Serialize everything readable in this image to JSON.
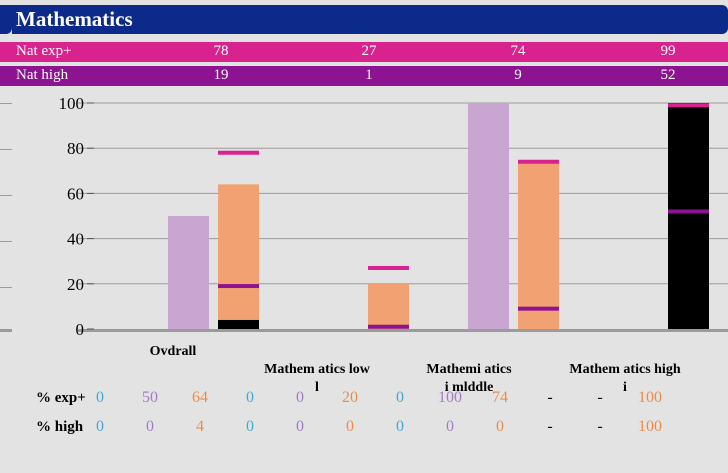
{
  "title": "Mathematics",
  "nat_rows": [
    {
      "label": "Nat exp+",
      "values": [
        "78",
        "27",
        "74",
        "99"
      ]
    },
    {
      "label": "Nat high",
      "values": [
        "19",
        "1",
        "9",
        "52"
      ]
    }
  ],
  "colors": {
    "header": "#0b2a8a",
    "nat_exp": "#d8238f",
    "nat_high": "#8d1490",
    "lilac": "#c9a6d2",
    "orange": "#f2a272",
    "black": "#000000",
    "blue_text": "#46a7d6",
    "purple_text": "#a27cc4",
    "orange_text": "#eb8c4a",
    "background": "#e3e3e3"
  },
  "chart_data": {
    "type": "bar",
    "ylim": [
      0,
      100
    ],
    "yticks": [
      "0",
      "20",
      "40",
      "60",
      "80",
      "100"
    ],
    "categories": [
      "Overall",
      "Mathematics low",
      "Mathematics middle",
      "Mathematics high"
    ],
    "category_labels": [
      "Ovdrall",
      "Mathem atics low\nl",
      "Mathemi atics\ni mldd​le",
      "Mathem atics high\ni"
    ],
    "bars": [
      {
        "group": 0,
        "slot": 1,
        "exp": 50,
        "high": 0,
        "color": "lilac"
      },
      {
        "group": 0,
        "slot": 2,
        "exp": 64,
        "high": 4,
        "color": "orange"
      },
      {
        "group": 1,
        "slot": 2,
        "exp": 20,
        "high": 0,
        "color": "orange"
      },
      {
        "group": 2,
        "slot": 1,
        "exp": 100,
        "high": 0,
        "color": "lilac"
      },
      {
        "group": 2,
        "slot": 2,
        "exp": 74,
        "high": 0,
        "color": "orange"
      },
      {
        "group": 3,
        "slot": 2,
        "exp": 100,
        "high": 100,
        "color": "black"
      }
    ],
    "nat_markers": [
      {
        "group": 0,
        "exp": 78,
        "high": 19
      },
      {
        "group": 1,
        "exp": 27,
        "high": 1
      },
      {
        "group": 2,
        "exp": 74,
        "high": 9
      },
      {
        "group": 3,
        "exp": 99,
        "high": 52
      }
    ],
    "table": {
      "rows": [
        {
          "label": "% exp+",
          "values": [
            "0",
            "50",
            "64",
            "0",
            "0",
            "20",
            "0",
            "100",
            "74",
            "-",
            "-",
            "100"
          ]
        },
        {
          "label": "% high",
          "values": [
            "0",
            "0",
            "4",
            "0",
            "0",
            "0",
            "0",
            "0",
            "0",
            "-",
            "-",
            "100"
          ]
        }
      ],
      "column_colors": [
        "blue_text",
        "purple_text",
        "orange_text",
        "blue_text",
        "purple_text",
        "orange_text",
        "blue_text",
        "purple_text",
        "orange_text",
        "black",
        "black",
        "orange_text"
      ]
    }
  }
}
